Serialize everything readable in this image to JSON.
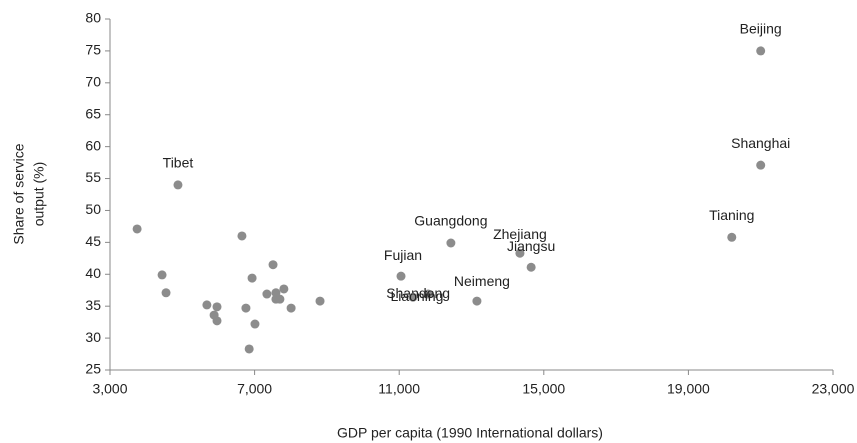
{
  "chart_data": {
    "type": "scatter",
    "xlabel": "GDP per capita (1990 International dollars)",
    "ylabel": [
      "Share of service",
      "output (%)"
    ],
    "color": "#8c8c8c",
    "xlim": [
      3000,
      23000
    ],
    "xticks": [
      {
        "value": 3000,
        "label": "3,000"
      },
      {
        "value": 7000,
        "label": "7,000"
      },
      {
        "value": 11000,
        "label": "11,000"
      },
      {
        "value": 15000,
        "label": "15,000"
      },
      {
        "value": 19000,
        "label": "19,000"
      },
      {
        "value": 23000,
        "label": "23,000"
      }
    ],
    "ylim": [
      25,
      80
    ],
    "yticks": [
      25,
      30,
      35,
      40,
      45,
      50,
      55,
      60,
      65,
      70,
      75,
      80
    ],
    "x": [
      21000,
      21000,
      20200,
      4880,
      3750,
      4440,
      4550,
      5680,
      5960,
      5880,
      5960,
      6650,
      6930,
      6760,
      7010,
      6850,
      7510,
      7340,
      7590,
      7590,
      7700,
      7810,
      8010,
      8810,
      11050,
      11800,
      11380,
      12430,
      14340,
      14650,
      13150
    ],
    "values": [
      75,
      57.1,
      45.8,
      54,
      47.1,
      39.9,
      37.1,
      35.2,
      34.9,
      33.6,
      32.7,
      46,
      39.4,
      34.7,
      32.2,
      28.3,
      41.5,
      36.9,
      37.1,
      36.1,
      36.1,
      37.7,
      34.7,
      35.8,
      39.7,
      36.9,
      36.4,
      44.9,
      43.3,
      41.1,
      35.8
    ],
    "labels": [
      "Beijing",
      "Shanghai",
      "Tianing",
      "Tibet",
      null,
      null,
      null,
      null,
      null,
      null,
      null,
      null,
      null,
      null,
      null,
      null,
      null,
      null,
      null,
      null,
      null,
      null,
      null,
      null,
      "Fujian",
      "Shandong",
      "Liaoning",
      "Guangdong",
      "Zhejiang",
      "Jiangsu",
      "Neimeng"
    ]
  }
}
